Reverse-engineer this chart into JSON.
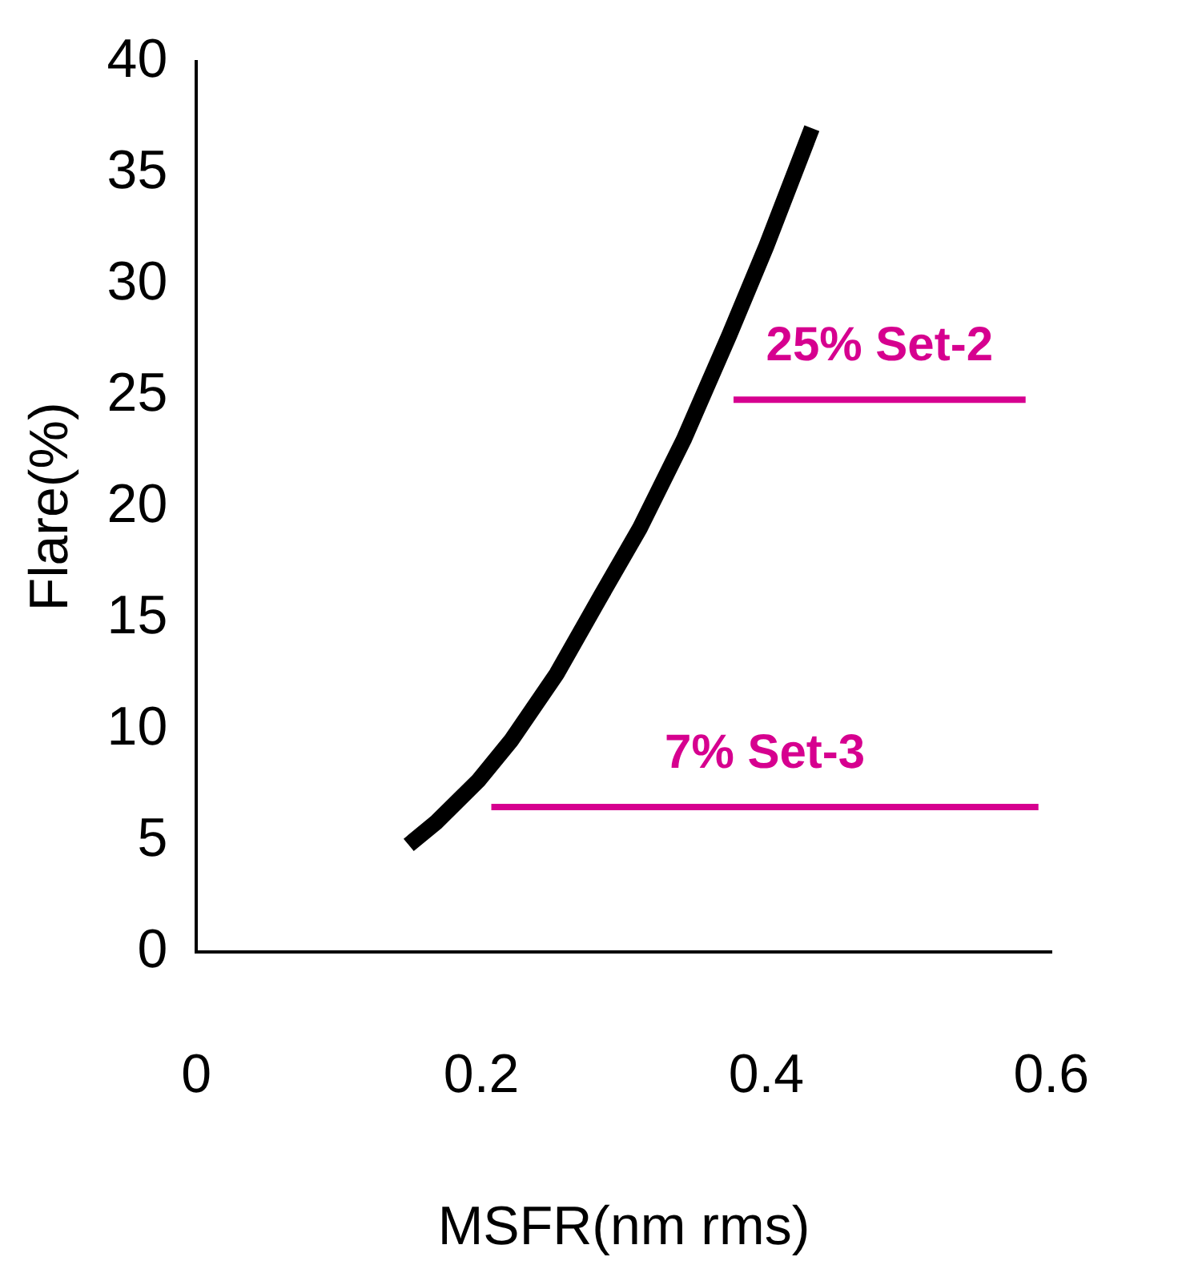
{
  "chart_data": {
    "type": "line",
    "xlabel": "MSFR(nm rms)",
    "ylabel": "Flare(%)",
    "xlim": [
      0,
      0.6
    ],
    "xticks": [
      0,
      0.2,
      0.4,
      0.6
    ],
    "ylim": [
      0,
      40
    ],
    "yticks": [
      0,
      5,
      10,
      15,
      20,
      25,
      30,
      35,
      40
    ],
    "grid": false,
    "legend": false,
    "marker": "none",
    "series": [
      {
        "color": "#000000",
        "x": [
          0.149,
          0.168,
          0.198,
          0.221,
          0.253,
          0.284,
          0.311,
          0.342,
          0.374,
          0.4,
          0.432
        ],
        "values": [
          4.8,
          5.8,
          7.7,
          9.5,
          12.5,
          16,
          19,
          23,
          27.7,
          31.7,
          37
        ]
      },
      {
        "name": "25% Set-2",
        "color": "#d6008f",
        "x": [
          0.377,
          0.582
        ],
        "values": [
          24.8,
          24.8
        ]
      },
      {
        "name": "7% Set-3",
        "color": "#d6008f",
        "x": [
          0.207,
          0.591
        ],
        "values": [
          6.5,
          6.5
        ]
      }
    ]
  }
}
